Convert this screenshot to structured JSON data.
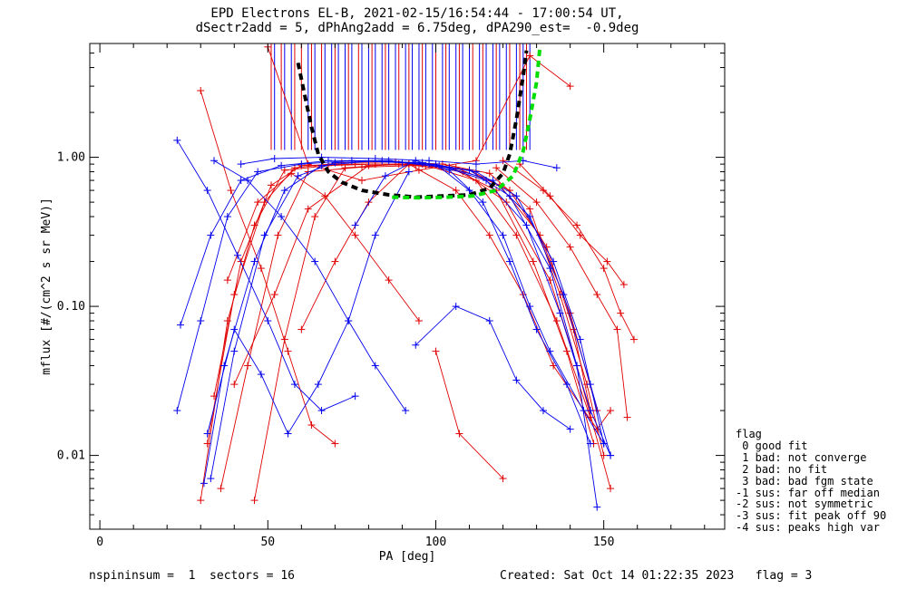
{
  "title": {
    "line1": "EPD Electrons EL-B, 2021-02-15/16:54:44 - 17:00:54 UT,",
    "line2": "dSectr2add = 5, dPhAng2add = 6.75deg, dPA290_est=  -0.9deg"
  },
  "footer": {
    "left": "nspininsum =  1  sectors = 16",
    "right": "Created: Sat Oct 14 01:22:35 2023   flag = 3"
  },
  "flag_legend": {
    "title": "flag",
    "items": [
      " 0 good fit",
      " 1 bad: not converge",
      " 2 bad: no fit",
      " 3 bad: bad fgm state",
      "-1 sus: far off median",
      "-2 sus: not symmetric",
      "-3 sus: fit peak off 90",
      "-4 sus: peaks high var"
    ]
  },
  "colors": {
    "red": "#e00000",
    "blue": "#0000ee",
    "fit": "#000000",
    "fit2": "#00dd00"
  },
  "chart_data": {
    "type": "line",
    "xlabel": "PA [deg]",
    "ylabel": "mflux [#/(cm^2 s sr MeV)]",
    "xlim": [
      -3,
      186
    ],
    "ylim": [
      0.0032,
      5.8
    ],
    "yscale": "log",
    "xticks": [
      0,
      50,
      100,
      150
    ],
    "xtick_labels": [
      "0",
      "50",
      "100",
      "150"
    ],
    "yticks": [
      0.01,
      0.1,
      1.0
    ],
    "ytick_labels": [
      "0.01",
      "0.10",
      "1.00"
    ],
    "series": [
      {
        "color": "red",
        "points": [
          [
            30,
            0.005
          ],
          [
            38,
            0.08
          ],
          [
            46,
            0.35
          ],
          [
            55,
            0.82
          ],
          [
            68,
            0.88
          ],
          [
            82,
            0.9
          ],
          [
            97,
            0.88
          ],
          [
            110,
            0.82
          ],
          [
            122,
            0.6
          ],
          [
            133,
            0.25
          ],
          [
            141,
            0.07
          ],
          [
            146,
            0.02
          ]
        ]
      },
      {
        "color": "red",
        "points": [
          [
            32,
            0.012
          ],
          [
            40,
            0.12
          ],
          [
            49,
            0.5
          ],
          [
            58,
            0.85
          ],
          [
            72,
            0.92
          ],
          [
            88,
            0.93
          ],
          [
            102,
            0.9
          ],
          [
            116,
            0.78
          ],
          [
            128,
            0.45
          ],
          [
            137,
            0.12
          ],
          [
            145,
            0.03
          ],
          [
            150,
            0.01
          ]
        ]
      },
      {
        "color": "red",
        "points": [
          [
            34,
            0.025
          ],
          [
            42,
            0.2
          ],
          [
            51,
            0.65
          ],
          [
            60,
            0.88
          ],
          [
            76,
            0.9
          ],
          [
            92,
            0.9
          ],
          [
            106,
            0.85
          ],
          [
            119,
            0.65
          ],
          [
            131,
            0.3
          ],
          [
            140,
            0.09
          ],
          [
            148,
            0.02
          ]
        ]
      },
      {
        "color": "red",
        "points": [
          [
            30,
            2.8
          ],
          [
            39,
            0.6
          ],
          [
            48,
            0.18
          ],
          [
            56,
            0.05
          ],
          [
            63,
            0.016
          ],
          [
            70,
            0.012
          ]
        ]
      },
      {
        "color": "red",
        "points": [
          [
            36,
            0.006
          ],
          [
            44,
            0.04
          ],
          [
            53,
            0.3
          ],
          [
            62,
            0.8
          ],
          [
            78,
            0.86
          ],
          [
            94,
            0.88
          ],
          [
            108,
            0.8
          ],
          [
            121,
            0.5
          ],
          [
            134,
            0.15
          ],
          [
            142,
            0.04
          ],
          [
            152,
            0.006
          ]
        ]
      },
      {
        "color": "red",
        "points": [
          [
            46,
            0.005
          ],
          [
            55,
            0.06
          ],
          [
            64,
            0.4
          ],
          [
            73,
            0.85
          ],
          [
            89,
            0.9
          ],
          [
            104,
            0.86
          ],
          [
            118,
            0.6
          ],
          [
            129,
            0.2
          ],
          [
            139,
            0.05
          ],
          [
            147,
            0.012
          ]
        ]
      },
      {
        "color": "red",
        "points": [
          [
            40,
            0.03
          ],
          [
            52,
            0.12
          ],
          [
            62,
            0.45
          ],
          [
            80,
            0.88
          ],
          [
            96,
            0.9
          ],
          [
            112,
            0.7
          ],
          [
            124,
            0.3
          ],
          [
            136,
            0.08
          ],
          [
            146,
            0.018
          ]
        ]
      },
      {
        "color": "red",
        "points": [
          [
            100,
            0.05
          ],
          [
            107,
            0.014
          ],
          [
            120,
            0.007
          ]
        ]
      },
      {
        "color": "red",
        "points": [
          [
            50,
            5.5
          ],
          [
            62,
            0.9
          ],
          [
            78,
            0.7
          ],
          [
            95,
            0.82
          ],
          [
            112,
            0.95
          ],
          [
            128,
            4.8
          ],
          [
            140,
            3.0
          ]
        ]
      },
      {
        "color": "red",
        "points": [
          [
            120,
            0.95
          ],
          [
            132,
            0.6
          ],
          [
            142,
            0.35
          ],
          [
            150,
            0.18
          ],
          [
            155,
            0.09
          ],
          [
            159,
            0.06
          ]
        ]
      },
      {
        "color": "red",
        "points": [
          [
            118,
            0.85
          ],
          [
            130,
            0.5
          ],
          [
            140,
            0.25
          ],
          [
            148,
            0.12
          ],
          [
            154,
            0.07
          ],
          [
            157,
            0.018
          ]
        ]
      },
      {
        "color": "red",
        "points": [
          [
            125,
            0.9
          ],
          [
            134,
            0.55
          ],
          [
            143,
            0.3
          ],
          [
            151,
            0.2
          ],
          [
            156,
            0.14
          ]
        ]
      },
      {
        "color": "red",
        "points": [
          [
            38,
            0.15
          ],
          [
            47,
            0.5
          ],
          [
            57,
            0.78
          ],
          [
            67,
            0.55
          ],
          [
            76,
            0.3
          ],
          [
            86,
            0.15
          ],
          [
            95,
            0.08
          ]
        ]
      },
      {
        "color": "red",
        "points": [
          [
            60,
            0.07
          ],
          [
            70,
            0.2
          ],
          [
            80,
            0.5
          ],
          [
            92,
            0.9
          ],
          [
            106,
            0.6
          ],
          [
            116,
            0.3
          ],
          [
            126,
            0.12
          ],
          [
            135,
            0.04
          ],
          [
            148,
            0.015
          ],
          [
            152,
            0.02
          ]
        ]
      },
      {
        "color": "blue",
        "points": [
          [
            23,
            1.3
          ],
          [
            32,
            0.6
          ],
          [
            41,
            0.22
          ],
          [
            50,
            0.08
          ],
          [
            58,
            0.03
          ],
          [
            66,
            0.02
          ],
          [
            76,
            0.025
          ]
        ]
      },
      {
        "color": "blue",
        "points": [
          [
            23,
            0.02
          ],
          [
            30,
            0.08
          ],
          [
            38,
            0.4
          ],
          [
            47,
            0.8
          ],
          [
            60,
            0.9
          ],
          [
            75,
            0.95
          ],
          [
            90,
            0.92
          ],
          [
            104,
            0.85
          ],
          [
            117,
            0.7
          ],
          [
            128,
            0.4
          ],
          [
            138,
            0.12
          ],
          [
            146,
            0.03
          ],
          [
            152,
            0.01
          ]
        ]
      },
      {
        "color": "blue",
        "points": [
          [
            24,
            0.075
          ],
          [
            33,
            0.3
          ],
          [
            42,
            0.7
          ],
          [
            54,
            0.88
          ],
          [
            68,
            0.95
          ],
          [
            84,
            0.95
          ],
          [
            98,
            0.9
          ],
          [
            112,
            0.8
          ],
          [
            124,
            0.55
          ],
          [
            135,
            0.2
          ],
          [
            143,
            0.06
          ],
          [
            150,
            0.012
          ]
        ]
      },
      {
        "color": "blue",
        "points": [
          [
            31,
            0.0065
          ],
          [
            37,
            0.04
          ],
          [
            46,
            0.2
          ],
          [
            55,
            0.6
          ],
          [
            66,
            0.88
          ],
          [
            80,
            0.94
          ],
          [
            96,
            0.92
          ],
          [
            110,
            0.82
          ],
          [
            122,
            0.55
          ],
          [
            134,
            0.18
          ],
          [
            142,
            0.04
          ],
          [
            148,
            0.0045
          ]
        ]
      },
      {
        "color": "blue",
        "points": [
          [
            33,
            0.007
          ],
          [
            40,
            0.05
          ],
          [
            49,
            0.3
          ],
          [
            59,
            0.75
          ],
          [
            70,
            0.92
          ],
          [
            86,
            0.95
          ],
          [
            101,
            0.88
          ],
          [
            115,
            0.7
          ],
          [
            127,
            0.35
          ],
          [
            137,
            0.09
          ],
          [
            146,
            0.02
          ],
          [
            152,
            0.01
          ]
        ]
      },
      {
        "color": "blue",
        "points": [
          [
            34,
            0.95
          ],
          [
            44,
            0.7
          ],
          [
            54,
            0.4
          ],
          [
            64,
            0.2
          ],
          [
            74,
            0.08
          ],
          [
            82,
            0.04
          ],
          [
            91,
            0.02
          ]
        ]
      },
      {
        "color": "blue",
        "points": [
          [
            76,
            0.35
          ],
          [
            85,
            0.75
          ],
          [
            94,
            0.95
          ],
          [
            104,
            0.82
          ],
          [
            114,
            0.5
          ],
          [
            122,
            0.2
          ],
          [
            130,
            0.07
          ],
          [
            139,
            0.03
          ],
          [
            146,
            0.012
          ]
        ]
      },
      {
        "color": "blue",
        "points": [
          [
            94,
            0.055
          ],
          [
            106,
            0.1
          ],
          [
            116,
            0.08
          ],
          [
            124,
            0.032
          ],
          [
            132,
            0.02
          ],
          [
            140,
            0.015
          ]
        ]
      },
      {
        "color": "blue",
        "points": [
          [
            32,
            0.014
          ],
          [
            40,
            0.07
          ],
          [
            48,
            0.035
          ],
          [
            56,
            0.014
          ],
          [
            65,
            0.03
          ],
          [
            74,
            0.08
          ],
          [
            82,
            0.3
          ],
          [
            92,
            0.8
          ]
        ]
      },
      {
        "color": "blue",
        "points": [
          [
            42,
            0.9
          ],
          [
            52,
            0.98
          ],
          [
            66,
            1.0
          ],
          [
            82,
            0.98
          ],
          [
            98,
            0.95
          ],
          [
            112,
            0.9
          ],
          [
            126,
            0.95
          ],
          [
            136,
            0.85
          ]
        ]
      },
      {
        "color": "blue",
        "points": [
          [
            100,
            0.9
          ],
          [
            110,
            0.6
          ],
          [
            120,
            0.3
          ],
          [
            128,
            0.1
          ],
          [
            134,
            0.05
          ],
          [
            144,
            0.02
          ],
          [
            150,
            0.012
          ]
        ]
      }
    ],
    "fit_black": [
      [
        59,
        4.3
      ],
      [
        61,
        2.6
      ],
      [
        63,
        1.6
      ],
      [
        65,
        1.05
      ],
      [
        68,
        0.8
      ],
      [
        72,
        0.68
      ],
      [
        78,
        0.6
      ],
      [
        86,
        0.56
      ],
      [
        94,
        0.54
      ],
      [
        102,
        0.55
      ],
      [
        110,
        0.56
      ],
      [
        116,
        0.62
      ],
      [
        120,
        0.78
      ],
      [
        122,
        1.05
      ],
      [
        124,
        1.8
      ],
      [
        126,
        3.5
      ],
      [
        127,
        5.2
      ]
    ],
    "fit_green": [
      [
        87,
        0.54
      ],
      [
        95,
        0.535
      ],
      [
        103,
        0.54
      ],
      [
        111,
        0.55
      ],
      [
        118,
        0.6
      ],
      [
        123,
        0.75
      ],
      [
        126,
        1.1
      ],
      [
        128,
        1.8
      ],
      [
        130,
        3.2
      ],
      [
        131,
        5.5
      ]
    ],
    "vlines_blue": [
      52,
      55,
      57,
      62,
      64,
      67,
      69,
      71,
      73,
      75,
      78,
      80,
      82,
      84,
      86,
      88,
      91,
      93,
      95,
      97,
      99,
      102,
      104,
      106,
      108,
      110,
      113,
      115,
      117,
      119,
      121,
      124,
      126,
      128
    ],
    "vlines_red": [
      51,
      54,
      58,
      60,
      63,
      66,
      70,
      74,
      77,
      81,
      85,
      89,
      92,
      96,
      100,
      103,
      107,
      111,
      114,
      118,
      122,
      125,
      127
    ]
  }
}
